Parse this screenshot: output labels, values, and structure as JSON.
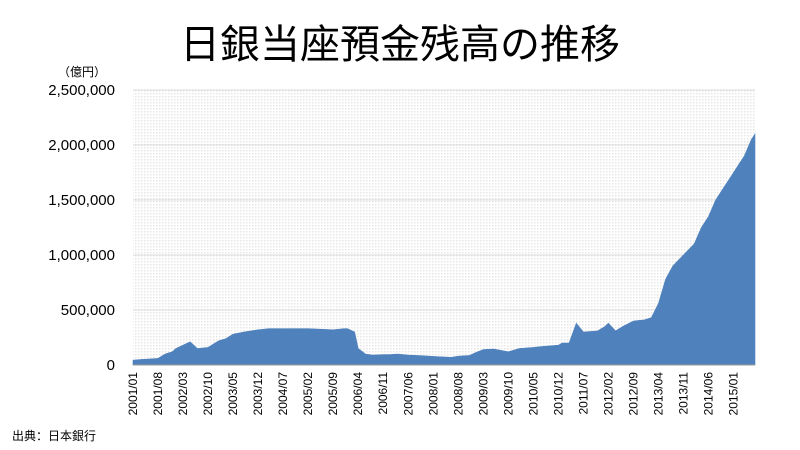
{
  "chart_data": {
    "type": "area",
    "title": "日銀当座預金残高の推移",
    "unit_label": "（億円）",
    "source": "出典：日本銀行",
    "ylim": [
      0,
      2500000
    ],
    "y_ticks": [
      0,
      500000,
      1000000,
      1500000,
      2000000,
      2500000
    ],
    "y_tick_labels": [
      "0",
      "500,000",
      "1,000,000",
      "1,500,000",
      "2,000,000",
      "2,500,000"
    ],
    "x_tick_labels": [
      "2001/01",
      "2001/08",
      "2002/03",
      "2002/10",
      "2003/05",
      "2003/12",
      "2004/07",
      "2005/02",
      "2005/09",
      "2006/04",
      "2006/11",
      "2007/06",
      "2008/01",
      "2008/08",
      "2009/03",
      "2009/10",
      "2010/05",
      "2010/12",
      "2011/07",
      "2012/02",
      "2012/09",
      "2013/04",
      "2013/11",
      "2014/06",
      "2015/01"
    ],
    "x_start": "2001/01",
    "x_end": "2015/07",
    "grid": true,
    "fill_color": "#4f81bd",
    "plot_background": "#e6e6e6",
    "series": [
      {
        "x": [
          "2001/01",
          "2001/03",
          "2001/06",
          "2001/08",
          "2001/10",
          "2001/12",
          "2002/01",
          "2002/03",
          "2002/05",
          "2002/07",
          "2002/10",
          "2003/01",
          "2003/03",
          "2003/05",
          "2003/08",
          "2003/12",
          "2004/03",
          "2004/07",
          "2004/12",
          "2005/02",
          "2005/06",
          "2005/09",
          "2005/12",
          "2006/01",
          "2006/03",
          "2006/04",
          "2006/06",
          "2006/08",
          "2006/11",
          "2007/01",
          "2007/03",
          "2007/06",
          "2007/09",
          "2007/12",
          "2008/03",
          "2008/06",
          "2008/08",
          "2008/11",
          "2009/01",
          "2009/03",
          "2009/06",
          "2009/10",
          "2010/01",
          "2010/05",
          "2010/08",
          "2010/12",
          "2011/01",
          "2011/03",
          "2011/05",
          "2011/07",
          "2011/11",
          "2012/01",
          "2012/02",
          "2012/04",
          "2012/06",
          "2012/09",
          "2012/12",
          "2013/02",
          "2013/04",
          "2013/06",
          "2013/08",
          "2013/11",
          "2014/02",
          "2014/04",
          "2014/06",
          "2014/08",
          "2014/10",
          "2014/12",
          "2015/02",
          "2015/04",
          "2015/06",
          "2015/07"
        ],
        "values": [
          45000,
          50000,
          55000,
          60000,
          100000,
          120000,
          150000,
          180000,
          210000,
          150000,
          160000,
          220000,
          240000,
          280000,
          300000,
          320000,
          330000,
          330000,
          330000,
          330000,
          325000,
          320000,
          330000,
          330000,
          300000,
          150000,
          100000,
          90000,
          95000,
          95000,
          100000,
          90000,
          85000,
          80000,
          75000,
          70000,
          80000,
          85000,
          115000,
          140000,
          145000,
          120000,
          150000,
          160000,
          170000,
          180000,
          200000,
          200000,
          380000,
          300000,
          310000,
          350000,
          380000,
          310000,
          350000,
          400000,
          410000,
          430000,
          560000,
          780000,
          900000,
          1000000,
          1100000,
          1250000,
          1350000,
          1500000,
          1600000,
          1700000,
          1800000,
          1900000,
          2050000,
          2100000
        ]
      }
    ]
  }
}
